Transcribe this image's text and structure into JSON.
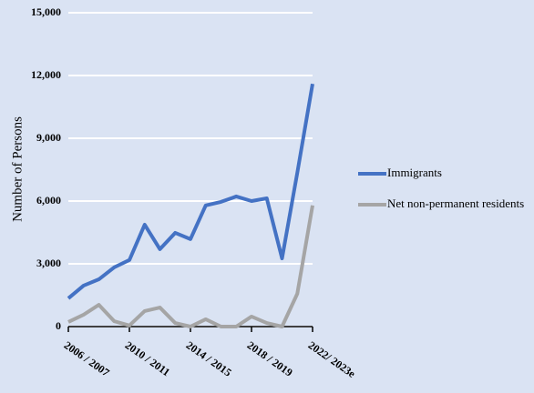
{
  "chart_data": {
    "type": "line",
    "y_label": "Number of Persons",
    "categories": [
      "2006 / 2007",
      null,
      null,
      null,
      "2010 / 2011",
      null,
      null,
      null,
      "2014 / 2015",
      null,
      null,
      null,
      "2018 / 2019",
      null,
      null,
      null,
      "2022/ 2023e"
    ],
    "series": [
      {
        "name": "Immigrants",
        "color": "#4472c4",
        "values": [
          1350,
          1960,
          2260,
          2830,
          3180,
          4870,
          3700,
          4480,
          4180,
          5790,
          5960,
          6220,
          6000,
          6130,
          3260,
          7350,
          11600
        ]
      },
      {
        "name": "Net non-permanent residents",
        "color": "#a5a5a5",
        "values": [
          220,
          570,
          1040,
          260,
          50,
          740,
          910,
          170,
          0,
          350,
          0,
          0,
          480,
          170,
          0,
          1570,
          5790
        ]
      }
    ],
    "ylim": [
      0,
      15000
    ],
    "yticks": [
      0,
      {
        "value": 3000,
        "label": "3,000"
      },
      {
        "value": 6000,
        "label": "6,000"
      },
      {
        "value": 9000,
        "label": "9,000"
      },
      {
        "value": 12000,
        "label": "12,000"
      },
      {
        "value": 15000,
        "label": "15,000"
      }
    ],
    "grid": true,
    "legend": "right"
  }
}
